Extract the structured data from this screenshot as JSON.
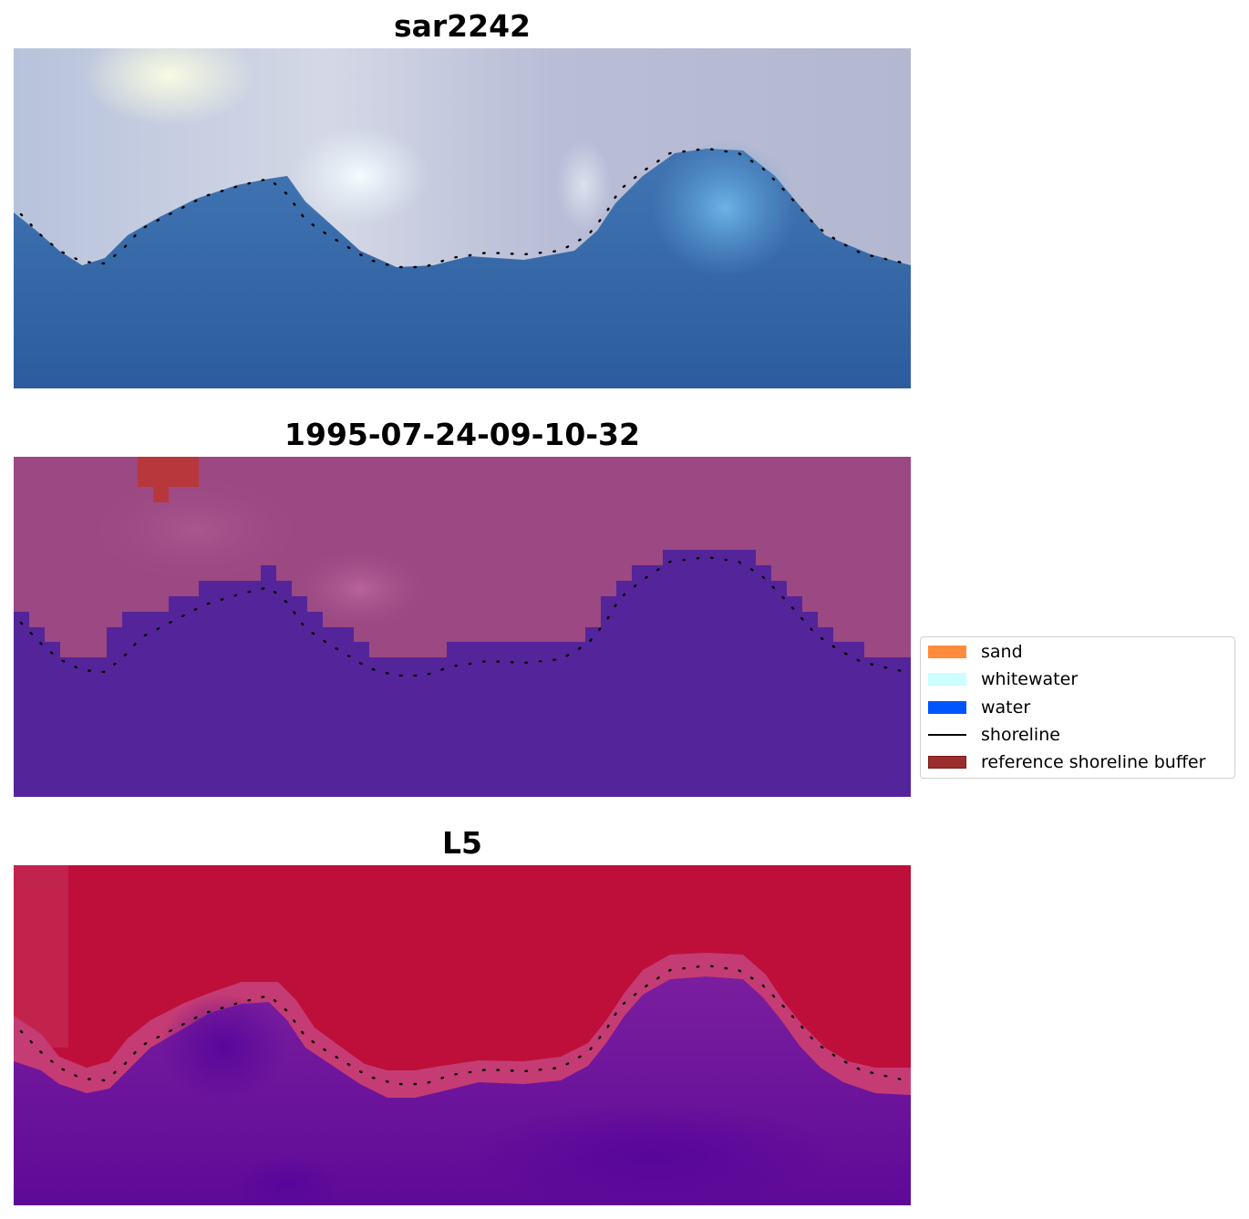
{
  "panels": [
    {
      "title": "sar2242",
      "kind": "rgb"
    },
    {
      "title": "1995-07-24-09-10-32",
      "kind": "classified"
    },
    {
      "title": "L5",
      "kind": "probability"
    }
  ],
  "legend": {
    "items": [
      {
        "label": "sand",
        "color": "#ff8c3c",
        "type": "patch"
      },
      {
        "label": "whitewater",
        "color": "#ccffff",
        "type": "patch"
      },
      {
        "label": "water",
        "color": "#0055ff",
        "type": "patch"
      },
      {
        "label": "shoreline",
        "color": "#000000",
        "type": "line"
      },
      {
        "label": "reference shoreline buffer",
        "color": "#9b2d2d",
        "type": "patch"
      }
    ]
  },
  "colors": {
    "water_dark": "#2f5f9e",
    "water_light": "#4a86c0",
    "land_light": "#c6cbdc",
    "highlight": "#f6f7dc",
    "classified_land": "#a04d86",
    "classified_water": "#54259a",
    "buffer": "#b8373d",
    "prob_land": "#bd0f3a",
    "prob_water": "#6a129a",
    "shoreline_dots": "#000000"
  }
}
